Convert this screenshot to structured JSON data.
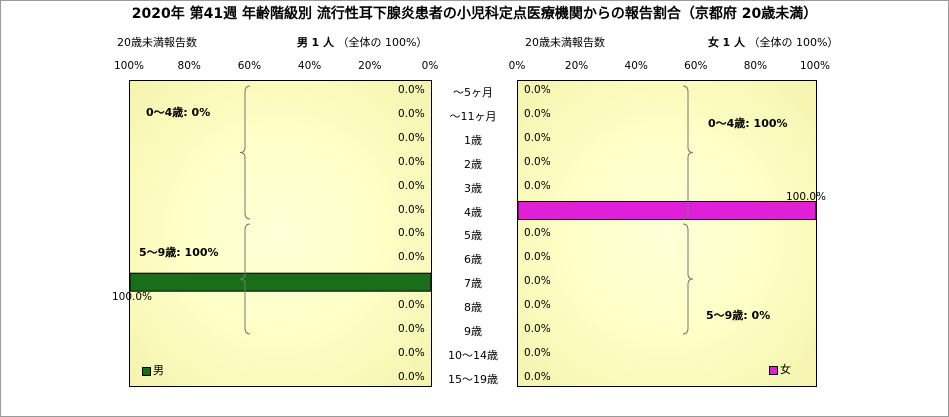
{
  "title": "2020年 第41週 年齢階級別 流行性耳下腺炎患者の小児科定点医療機関からの報告割合（京都府 20歳未満）",
  "left_header": {
    "scope": "20歳未満報告数",
    "sex": "男",
    "count": "1 人",
    "share": "（全体の 100%）"
  },
  "right_header": {
    "scope": "20歳未満報告数",
    "sex": "女",
    "count": "1 人",
    "share": "（全体の 100%）"
  },
  "colors": {
    "male": "#1a6e1a",
    "female": "#e020d8",
    "panel_bg": "#ffffc8"
  },
  "chart_data": [
    {
      "type": "bar",
      "orientation": "horizontal",
      "direction": "right-to-left",
      "series": [
        {
          "name": "男",
          "values": [
            0,
            0,
            0,
            0,
            0,
            0,
            0,
            0,
            100,
            0,
            0,
            0,
            0
          ]
        }
      ],
      "categories": [
        "～5ヶ月",
        "～11ヶ月",
        "1歳",
        "2歳",
        "3歳",
        "4歳",
        "5歳",
        "6歳",
        "7歳",
        "8歳",
        "9歳",
        "10～14歳",
        "15～19歳"
      ],
      "value_labels": [
        "0.0%",
        "0.0%",
        "0.0%",
        "0.0%",
        "0.0%",
        "0.0%",
        "0.0%",
        "0.0%",
        "100.0%",
        "0.0%",
        "0.0%",
        "0.0%",
        "0.0%"
      ],
      "xlim": [
        0,
        100
      ],
      "ticks": [
        "100%",
        "80%",
        "60%",
        "40%",
        "20%",
        "0%"
      ],
      "annotations": [
        "0～4歳: 0%",
        "5～9歳: 100%"
      ],
      "legend": "bottom-left"
    },
    {
      "type": "bar",
      "orientation": "horizontal",
      "direction": "left-to-right",
      "series": [
        {
          "name": "女",
          "values": [
            0,
            0,
            0,
            0,
            0,
            100,
            0,
            0,
            0,
            0,
            0,
            0,
            0
          ]
        }
      ],
      "categories": [
        "～5ヶ月",
        "～11ヶ月",
        "1歳",
        "2歳",
        "3歳",
        "4歳",
        "5歳",
        "6歳",
        "7歳",
        "8歳",
        "9歳",
        "10～14歳",
        "15～19歳"
      ],
      "value_labels": [
        "0.0%",
        "0.0%",
        "0.0%",
        "0.0%",
        "0.0%",
        "100.0%",
        "0.0%",
        "0.0%",
        "0.0%",
        "0.0%",
        "0.0%",
        "0.0%",
        "0.0%"
      ],
      "xlim": [
        0,
        100
      ],
      "ticks": [
        "0%",
        "20%",
        "40%",
        "60%",
        "80%",
        "100%"
      ],
      "annotations": [
        "0～4歳: 100%",
        "5～9歳: 0%"
      ],
      "legend": "bottom-right"
    }
  ]
}
